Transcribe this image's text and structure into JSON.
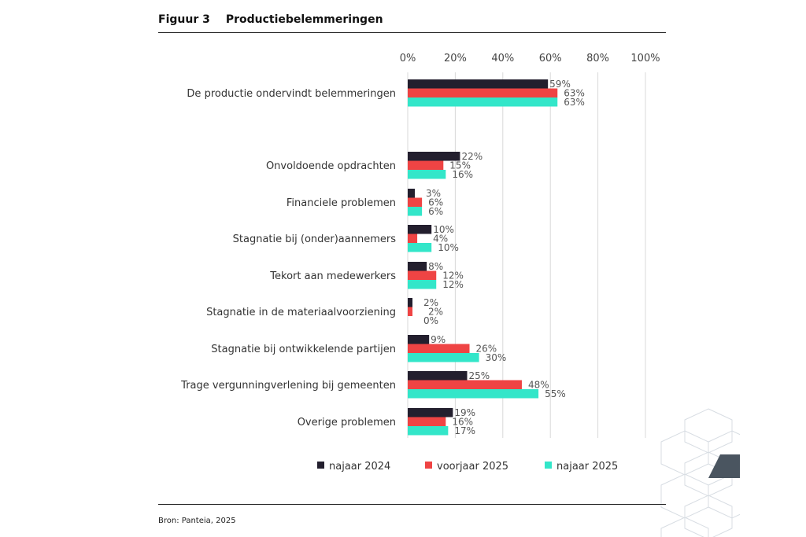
{
  "figure_label": "Figuur 3",
  "source": "Bron: Panteia, 2025",
  "chart_data": {
    "type": "bar",
    "orientation": "horizontal",
    "title": "Productiebelemmeringen",
    "xlim": [
      0,
      100
    ],
    "x_ticks": [
      "0%",
      "20%",
      "40%",
      "60%",
      "80%",
      "100%"
    ],
    "grid": true,
    "legend_position": "bottom",
    "categories": [
      "De productie ondervindt belemmeringen",
      "Onvoldoende opdrachten",
      "Financiele problemen",
      "Stagnatie bij (onder)aannemers",
      "Tekort aan medewerkers",
      "Stagnatie in de materiaalvoorziening",
      "Stagnatie bij ontwikkelende partijen",
      "Trage vergunningverlening bij gemeenten",
      "Overige problemen"
    ],
    "series": [
      {
        "name": "najaar 2024",
        "color": "#231f2e",
        "values": [
          59,
          22,
          3,
          10,
          8,
          2,
          9,
          25,
          19
        ]
      },
      {
        "name": "voorjaar 2025",
        "color": "#ef4444",
        "values": [
          63,
          15,
          6,
          4,
          12,
          2,
          26,
          48,
          16
        ]
      },
      {
        "name": "najaar 2025",
        "color": "#33e6c9",
        "values": [
          63,
          16,
          6,
          10,
          12,
          0,
          30,
          55,
          17
        ]
      }
    ]
  }
}
